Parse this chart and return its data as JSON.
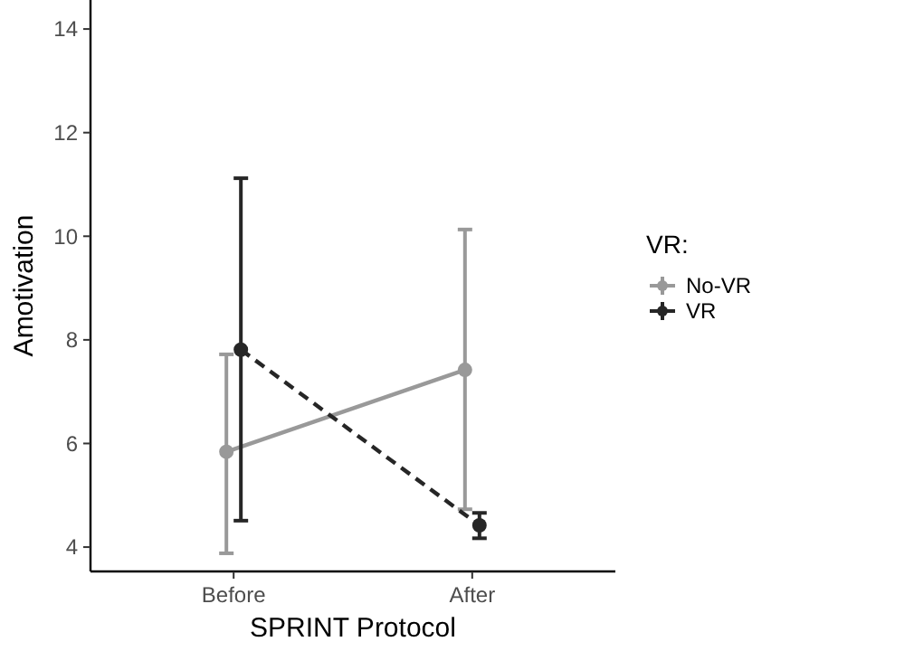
{
  "chart_data": {
    "type": "line",
    "xlabel": "SPRINT Protocol",
    "ylabel": "Amotivation",
    "legend_title": "VR:",
    "legend": "right",
    "marker": "circle",
    "grid": false,
    "categories": [
      "Before",
      "After"
    ],
    "ylim": [
      3.53,
      14.56
    ],
    "yticks": [
      4,
      6,
      8,
      10,
      12,
      14
    ],
    "series": [
      {
        "name": "No-VR",
        "color": "#999999",
        "line_style": "solid",
        "values": [
          5.84,
          7.42
        ],
        "errors": [
          [
            3.88,
            7.72
          ],
          [
            4.73,
            10.13
          ]
        ]
      },
      {
        "name": "VR",
        "color": "#262626",
        "line_style": "dashed",
        "values": [
          7.81,
          4.42
        ],
        "errors": [
          [
            4.51,
            11.12
          ],
          [
            4.17,
            4.66
          ]
        ]
      }
    ]
  }
}
